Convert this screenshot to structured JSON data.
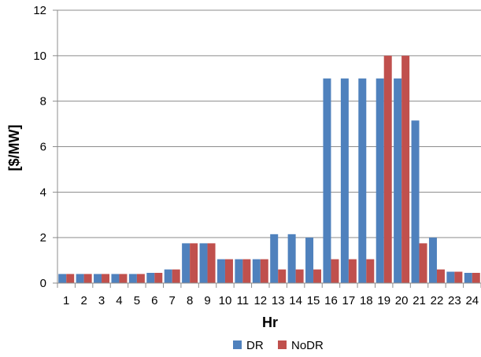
{
  "chart_data": {
    "type": "bar",
    "categories": [
      "1",
      "2",
      "3",
      "4",
      "5",
      "6",
      "7",
      "8",
      "9",
      "10",
      "11",
      "12",
      "13",
      "14",
      "15",
      "16",
      "17",
      "18",
      "19",
      "20",
      "21",
      "22",
      "23",
      "24"
    ],
    "series": [
      {
        "name": "DR",
        "color": "#4f81bd",
        "values": [
          0.4,
          0.4,
          0.4,
          0.4,
          0.4,
          0.45,
          0.6,
          1.75,
          1.75,
          1.05,
          1.05,
          1.05,
          2.15,
          2.15,
          2.0,
          9.0,
          9.0,
          9.0,
          9.0,
          9.0,
          7.15,
          2.0,
          0.5,
          0.45
        ]
      },
      {
        "name": "NoDR",
        "color": "#c0504d",
        "values": [
          0.4,
          0.4,
          0.4,
          0.4,
          0.4,
          0.45,
          0.6,
          1.75,
          1.75,
          1.05,
          1.05,
          1.05,
          0.6,
          0.6,
          0.6,
          1.05,
          1.05,
          1.05,
          10.0,
          10.0,
          1.75,
          0.6,
          0.5,
          0.45
        ]
      }
    ],
    "xlabel": "Hr",
    "ylabel": "[$/MW]",
    "ylim": [
      0,
      12
    ],
    "yticks": [
      "0",
      "2",
      "4",
      "6",
      "8",
      "10",
      "12"
    ],
    "grid": true,
    "legend": "bottom"
  }
}
